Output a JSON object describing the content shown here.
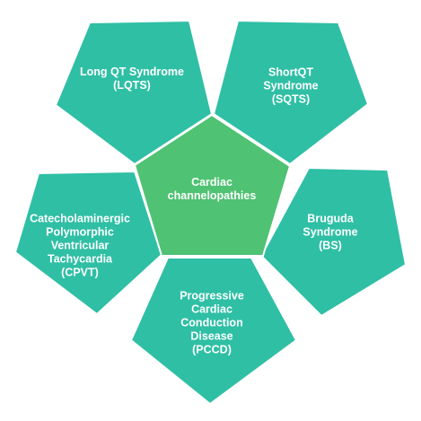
{
  "colors": {
    "outer_fill": "#2fbfa4",
    "center_fill": "#4fc273",
    "text": "#ffffff"
  },
  "center": {
    "label": "Cardiac\nchannelopathies"
  },
  "nodes": {
    "lqts": "Long QT Syndrome\n(LQTS)",
    "sqts": "ShortQT\nSyndrome\n(SQTS)",
    "bs": "Bruguda Syndrome\n(BS)",
    "pccd": "Progressive\nCardiac\nConduction\nDisease\n(PCCD)",
    "cpvt": "Catecholaminergic\nPolymorphic\nVentricular\nTachycardia\n(CPVT)"
  }
}
